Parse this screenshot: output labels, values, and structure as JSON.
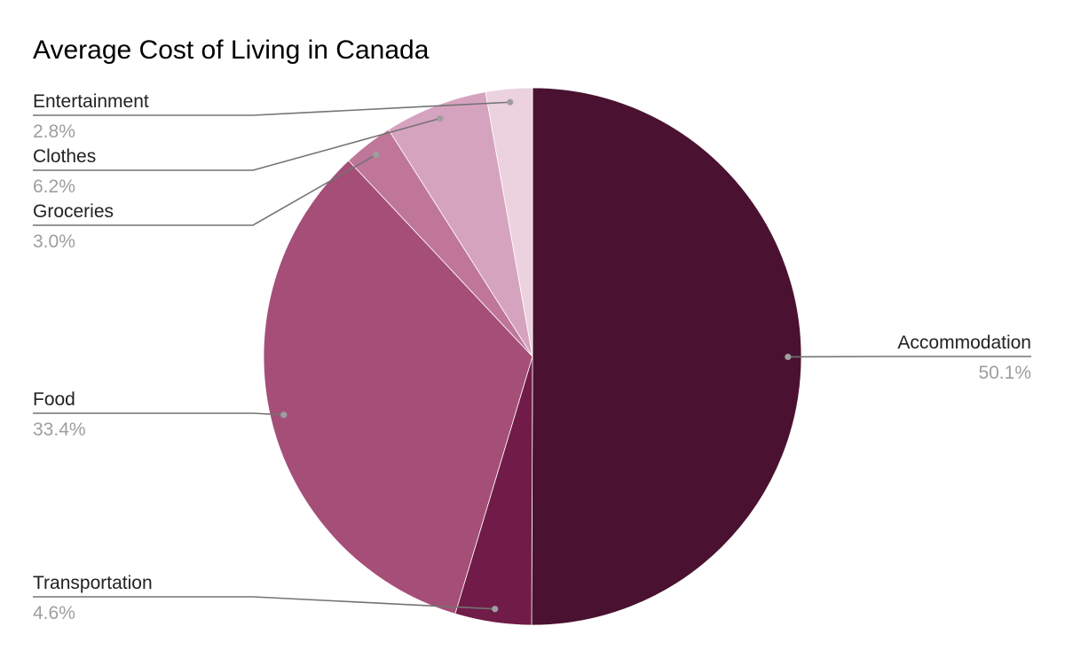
{
  "chart_data": {
    "type": "pie",
    "title": "Average Cost of Living in Canada",
    "slices": [
      {
        "label": "Accommodation",
        "value": 50.1,
        "display": "50.1%",
        "color": "#4a1230"
      },
      {
        "label": "Transportation",
        "value": 4.6,
        "display": "4.6%",
        "color": "#711b48"
      },
      {
        "label": "Food",
        "value": 33.4,
        "display": "33.4%",
        "color": "#a54e78"
      },
      {
        "label": "Groceries",
        "value": 3.0,
        "display": "3.0%",
        "color": "#bf7699"
      },
      {
        "label": "Clothes",
        "value": 6.2,
        "display": "6.2%",
        "color": "#d6a3bf"
      },
      {
        "label": "Entertainment",
        "value": 2.8,
        "display": "2.8%",
        "color": "#ebd2de"
      }
    ],
    "start_angle": "12 o'clock",
    "direction": "clockwise",
    "legend": "none",
    "label_placement": "outside-with-leader-lines"
  }
}
